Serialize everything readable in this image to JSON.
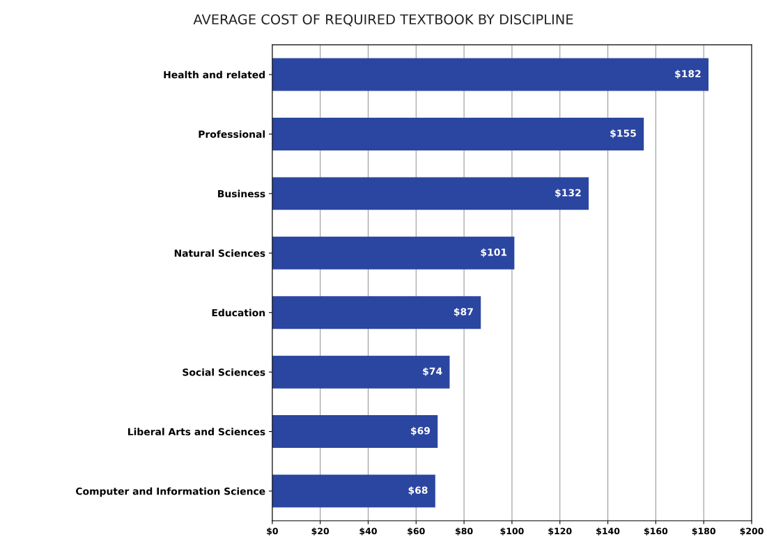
{
  "chart_data": {
    "type": "bar",
    "orientation": "horizontal",
    "title": "AVERAGE COST OF REQUIRED TEXTBOOK BY DISCIPLINE",
    "categories": [
      "Health and related",
      "Professional",
      "Business",
      "Natural Sciences",
      "Education",
      "Social Sciences",
      "Liberal Arts and Sciences",
      "Computer and Information Science"
    ],
    "values": [
      182,
      155,
      132,
      101,
      87,
      74,
      69,
      68
    ],
    "value_labels": [
      "$182",
      "$155",
      "$132",
      "$101",
      "$87",
      "$74",
      "$69",
      "$68"
    ],
    "color": "#2b46a0",
    "xlim": [
      0,
      200
    ],
    "xticks": [
      {
        "value": 0,
        "label": "$0"
      },
      {
        "value": 20,
        "label": "$20"
      },
      {
        "value": 40,
        "label": "$40"
      },
      {
        "value": 60,
        "label": "$60"
      },
      {
        "value": 80,
        "label": "$80"
      },
      {
        "value": 100,
        "label": "$100"
      },
      {
        "value": 120,
        "label": "$120"
      },
      {
        "value": 140,
        "label": "$140"
      },
      {
        "value": 160,
        "label": "$160"
      },
      {
        "value": 180,
        "label": "$180"
      },
      {
        "value": 200,
        "label": "$200"
      }
    ],
    "grid": "x",
    "legend": false
  }
}
